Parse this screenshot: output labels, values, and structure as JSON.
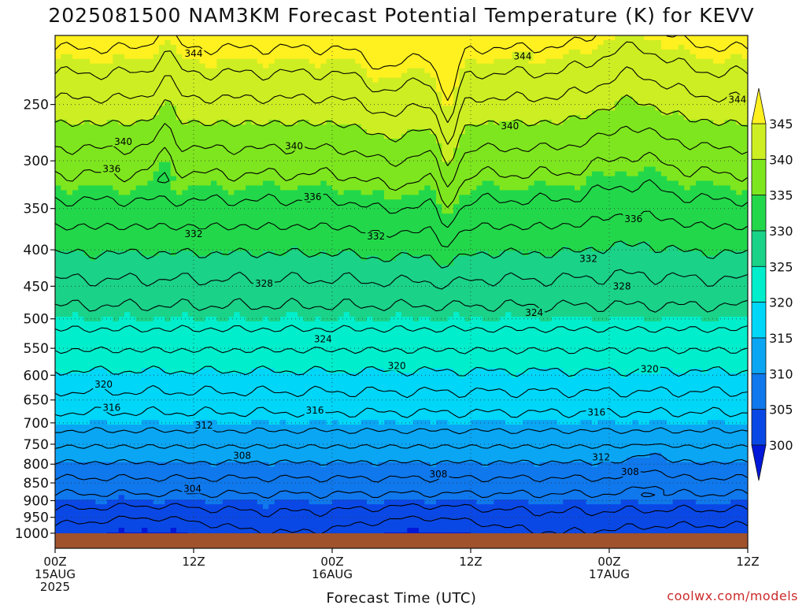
{
  "title": "2025081500 NAM3KM Forecast Potential Temperature (K) for KEVV",
  "credit": "coolwx.com/models",
  "chart_data": {
    "type": "heatmap",
    "title": "2025081500 NAM3KM Forecast Potential Temperature (K) for KEVV",
    "xlabel": "Forecast Time (UTC)",
    "ylabel": "",
    "x_range_hours": [
      0,
      60
    ],
    "y_range_hPa": [
      1050,
      200
    ],
    "y_scale": "log-pressure",
    "yticks": [
      250,
      300,
      350,
      400,
      450,
      500,
      550,
      600,
      650,
      700,
      750,
      800,
      850,
      900,
      950,
      1000
    ],
    "xticks": [
      {
        "hour": 0,
        "lines": [
          "00Z",
          "15AUG",
          "2025"
        ]
      },
      {
        "hour": 12,
        "lines": [
          "12Z"
        ]
      },
      {
        "hour": 24,
        "lines": [
          "00Z",
          "16AUG"
        ]
      },
      {
        "hour": 36,
        "lines": [
          "12Z"
        ]
      },
      {
        "hour": 48,
        "lines": [
          "00Z",
          "17AUG"
        ]
      },
      {
        "hour": 60,
        "lines": [
          "12Z"
        ]
      }
    ],
    "colorbar": {
      "levels": [
        300,
        305,
        310,
        315,
        320,
        325,
        330,
        335,
        340,
        345
      ],
      "colors": [
        "#0018d8",
        "#0a48e6",
        "#0f78ec",
        "#0aa6f4",
        "#00d6f8",
        "#00eecc",
        "#1ad288",
        "#22d84a",
        "#7ee61e",
        "#cdee22",
        "#fff020"
      ],
      "extend": "both"
    },
    "contour_levels": [
      302,
      304,
      306,
      308,
      310,
      312,
      314,
      316,
      318,
      320,
      322,
      324,
      326,
      328,
      330,
      332,
      334,
      336,
      338,
      340,
      342,
      344,
      346
    ],
    "contour_labels": [
      {
        "text": "344",
        "hour": 12.0,
        "p": 212
      },
      {
        "text": "344",
        "hour": 40.5,
        "p": 214
      },
      {
        "text": "344",
        "hour": 59.1,
        "p": 246
      },
      {
        "text": "340",
        "hour": 5.9,
        "p": 282
      },
      {
        "text": "340",
        "hour": 20.7,
        "p": 286
      },
      {
        "text": "340",
        "hour": 39.4,
        "p": 268
      },
      {
        "text": "336",
        "hour": 4.9,
        "p": 308
      },
      {
        "text": "336",
        "hour": 22.3,
        "p": 337
      },
      {
        "text": "336",
        "hour": 50.1,
        "p": 362
      },
      {
        "text": "332",
        "hour": 12.0,
        "p": 380
      },
      {
        "text": "332",
        "hour": 27.8,
        "p": 383
      },
      {
        "text": "332",
        "hour": 46.2,
        "p": 412
      },
      {
        "text": "328",
        "hour": 18.1,
        "p": 446
      },
      {
        "text": "328",
        "hour": 49.1,
        "p": 450
      },
      {
        "text": "324",
        "hour": 23.2,
        "p": 534
      },
      {
        "text": "324",
        "hour": 41.5,
        "p": 490
      },
      {
        "text": "320",
        "hour": 4.2,
        "p": 618
      },
      {
        "text": "320",
        "hour": 29.6,
        "p": 582
      },
      {
        "text": "320",
        "hour": 51.5,
        "p": 588
      },
      {
        "text": "316",
        "hour": 4.9,
        "p": 666
      },
      {
        "text": "316",
        "hour": 22.5,
        "p": 672
      },
      {
        "text": "316",
        "hour": 46.9,
        "p": 677
      },
      {
        "text": "312",
        "hour": 12.9,
        "p": 706
      },
      {
        "text": "312",
        "hour": 47.3,
        "p": 782
      },
      {
        "text": "308",
        "hour": 16.2,
        "p": 778
      },
      {
        "text": "308",
        "hour": 33.2,
        "p": 826
      },
      {
        "text": "308",
        "hour": 49.8,
        "p": 820
      },
      {
        "text": "304",
        "hour": 11.9,
        "p": 866
      }
    ]
  }
}
